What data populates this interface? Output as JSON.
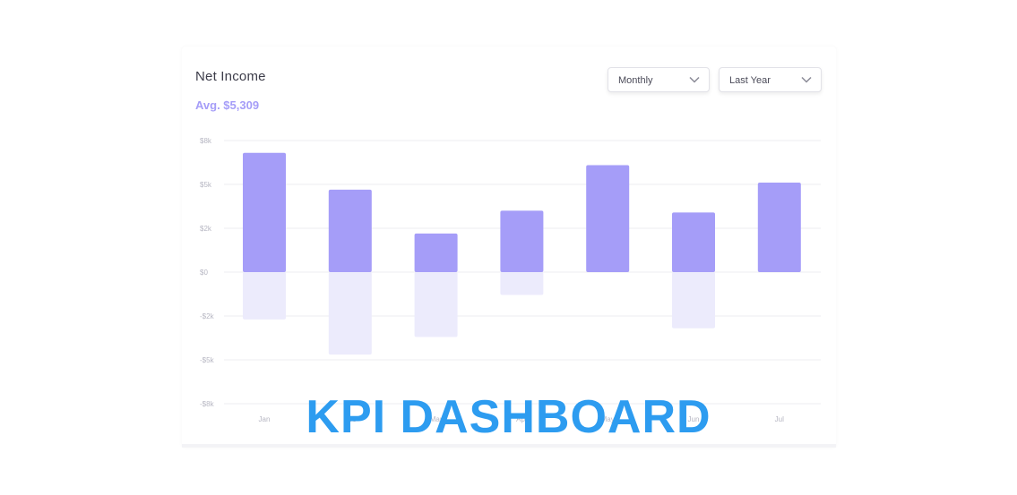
{
  "header": {
    "title": "Net Income",
    "average": "Avg. $5,309"
  },
  "controls": {
    "period": "Monthly",
    "range": "Last Year"
  },
  "overlay_text": "KPI DASHBOARD",
  "colors": {
    "positive": "#a59df8",
    "negative": "#ecebfc",
    "grid": "#eeeef2",
    "tick": "#b6b6c2",
    "overlay": "#2d9cf0"
  },
  "chart_data": {
    "type": "bar",
    "categories": [
      "Jan",
      "Feb",
      "Mar",
      "Apr",
      "May",
      "Jun",
      "Jul"
    ],
    "series": [
      {
        "values": [
          6.8,
          4.7,
          2.2,
          3.5,
          6.1,
          3.4,
          5.1
        ]
      },
      {
        "values": [
          -2.7,
          -4.7,
          -3.7,
          -1.3,
          0,
          -3.2,
          0
        ]
      }
    ],
    "y_ticks": [
      "$8k",
      "$5k",
      "$2k",
      "$0",
      "-$2k",
      "-$5k",
      "-$8k"
    ],
    "ylim": [
      -7.5,
      7.5
    ],
    "grid": true
  }
}
